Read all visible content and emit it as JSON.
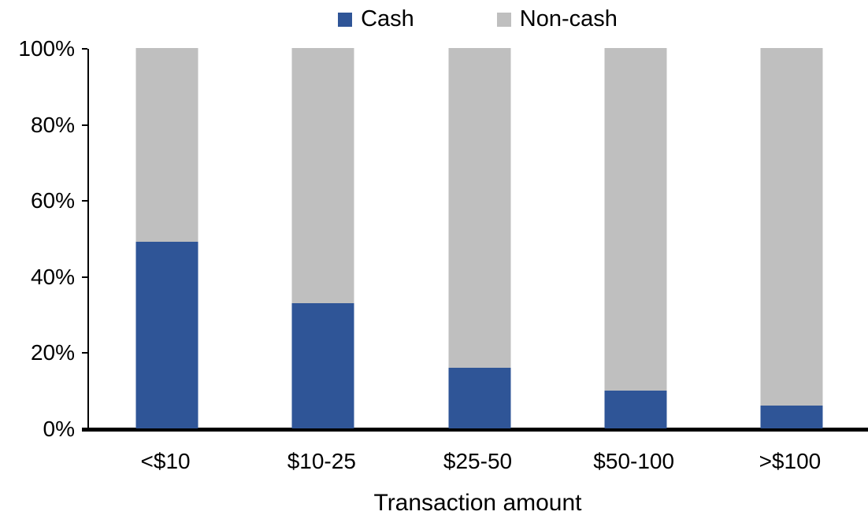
{
  "chart_data": {
    "type": "bar",
    "stacked": true,
    "percent_stacked": true,
    "title": "",
    "xlabel": "Transaction amount",
    "ylabel": "",
    "categories": [
      "<$10",
      "$10-25",
      "$25-50",
      "$50-100",
      ">$100"
    ],
    "series": [
      {
        "name": "Cash",
        "color": "#2F5597",
        "values": [
          49,
          33,
          16,
          10,
          6
        ]
      },
      {
        "name": "Non-cash",
        "color": "#BFBFBF",
        "values": [
          51,
          67,
          84,
          90,
          94
        ]
      }
    ],
    "ylim": [
      0,
      100
    ],
    "y_ticks": [
      "0%",
      "20%",
      "40%",
      "60%",
      "80%",
      "100%"
    ],
    "legend_position": "top",
    "grid": false,
    "axis_color": "#000000",
    "background_color": "#FFFFFF"
  }
}
